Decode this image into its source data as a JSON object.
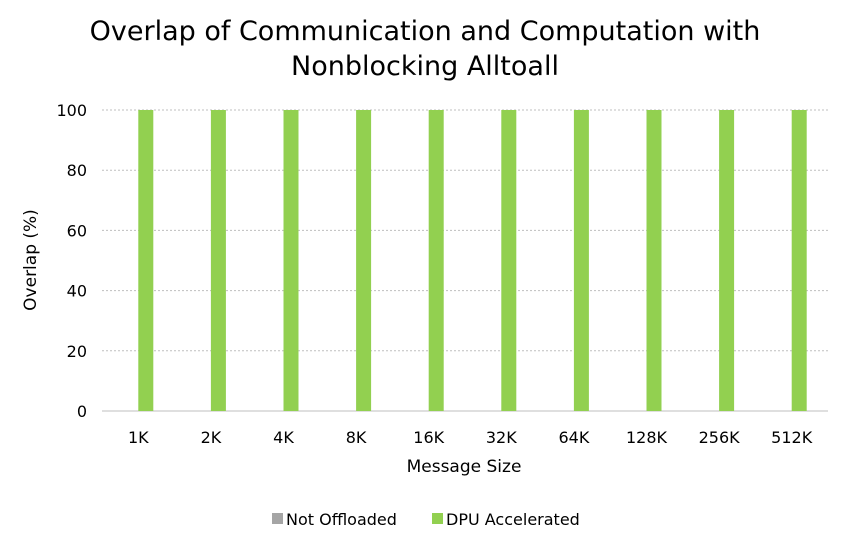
{
  "chart_data": {
    "type": "bar",
    "title": [
      "Overlap of Communication and Computation with",
      "Nonblocking Alltoall"
    ],
    "xlabel": "Message Size",
    "ylabel": "Overlap (%)",
    "categories": [
      "1K",
      "2K",
      "4K",
      "8K",
      "16K",
      "32K",
      "64K",
      "128K",
      "256K",
      "512K"
    ],
    "series": [
      {
        "name": "Not Offloaded",
        "values": [
          0,
          0,
          0,
          0,
          0,
          0,
          0,
          0,
          0,
          0
        ],
        "color": "#A5A5A5"
      },
      {
        "name": "DPU Accelerated",
        "values": [
          100,
          100,
          100,
          100,
          100,
          100,
          100,
          100,
          100,
          100
        ],
        "color": "#92D050"
      }
    ],
    "yticks": [
      "0",
      "20",
      "40",
      "60",
      "80",
      "100"
    ],
    "ylim": [
      0,
      100
    ],
    "grid": true,
    "legend_position": "bottom"
  }
}
